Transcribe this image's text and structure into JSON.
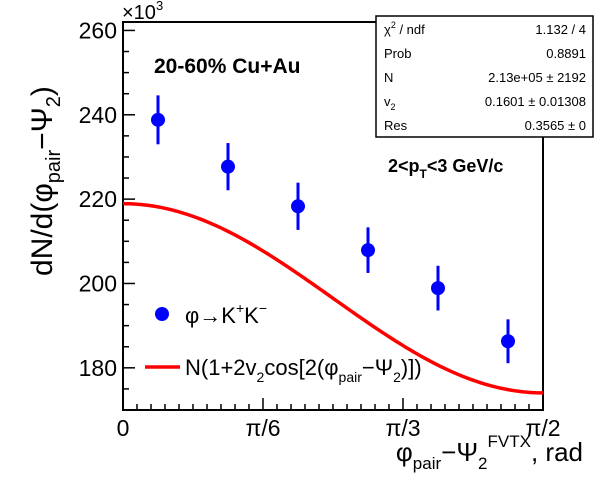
{
  "chart_data": {
    "type": "scatter",
    "xlabel": {
      "base": "φ",
      "sub1": "pair",
      "mid": "−Ψ",
      "sub2": "2",
      "sup": "FVTX",
      "tail": ", rad"
    },
    "ylabel": {
      "a": "dN/d(φ",
      "sub": "pair",
      "b": "−Ψ",
      "sub2": "2",
      "c": ")"
    },
    "y_multiplier": {
      "base": "×10",
      "exp": "3"
    },
    "xlim": [
      0,
      1.5708
    ],
    "ylim": [
      170,
      262
    ],
    "x_ticks": [
      {
        "label": "0",
        "value": 0
      },
      {
        "label": "π/6",
        "value": 0.5236
      },
      {
        "label": "π/3",
        "value": 1.0472
      },
      {
        "label": "π/2",
        "value": 1.5708
      }
    ],
    "y_ticks": [
      {
        "label": "180",
        "value": 180
      },
      {
        "label": "200",
        "value": 200
      },
      {
        "label": "220",
        "value": 220
      },
      {
        "label": "240",
        "value": 240
      },
      {
        "label": "260",
        "value": 260
      }
    ],
    "series": [
      {
        "name": "φ→K⁺K⁻",
        "color": "#0000ff",
        "x": [
          0.1309,
          0.3927,
          0.6545,
          0.9163,
          1.1781,
          1.4399
        ],
        "y": [
          238.8,
          227.7,
          218.3,
          207.9,
          198.9,
          186.3
        ],
        "err": [
          5.8,
          5.6,
          5.6,
          5.4,
          5.3,
          5.2
        ]
      }
    ],
    "fit": {
      "color": "#ff0000",
      "N": 213.0,
      "v2": 0.1601,
      "res": 0.3565
    },
    "annotations": {
      "collision": "20-60% Cu+Au",
      "pt_a": "2<p",
      "pt_sub": "T",
      "pt_b": "<3 GeV/c"
    },
    "legend": {
      "marker_label": {
        "a": "φ→K",
        "sup1": "+",
        "b": "K",
        "sup2": "−"
      },
      "fit_label": {
        "a": "N(1+2v",
        "sub1": "2",
        "b": "cos[2(φ",
        "sub2": "pair",
        "c": "−Ψ",
        "sub3": "2",
        "d": ")])"
      }
    },
    "stats_box": {
      "rows": [
        {
          "label_a": "χ",
          "label_sup": "2",
          "label_b": " / ndf",
          "label_sub": "",
          "value": "1.132 / 4"
        },
        {
          "label_a": "Prob",
          "label_sup": "",
          "label_b": "",
          "label_sub": "",
          "value": "0.8891"
        },
        {
          "label_a": "N",
          "label_sup": "",
          "label_b": "",
          "label_sub": "",
          "value": "2.13e+05 ±  2192"
        },
        {
          "label_a": "v",
          "label_sup": "",
          "label_b": "",
          "label_sub": "2",
          "value": "0.1601 ± 0.01308"
        },
        {
          "label_a": "Res",
          "label_sup": "",
          "label_b": "",
          "label_sub": "",
          "value": "0.3565 ±      0"
        }
      ]
    }
  }
}
